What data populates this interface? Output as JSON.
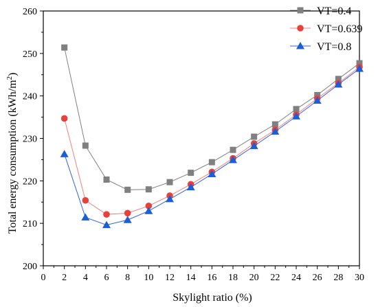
{
  "chart_data": {
    "type": "line",
    "xlabel": "Skylight ratio (%)",
    "ylabel": "Total energy consumption (kWh/m",
    "ylabel_sup": "2",
    "ylabel_close": ")",
    "xlim": [
      0,
      30
    ],
    "ylim": [
      200,
      260
    ],
    "x_ticks": [
      0,
      2,
      4,
      6,
      8,
      10,
      12,
      14,
      16,
      18,
      20,
      22,
      24,
      26,
      28,
      30
    ],
    "y_ticks": [
      200,
      210,
      220,
      230,
      240,
      250,
      260
    ],
    "x": [
      2,
      4,
      6,
      8,
      10,
      12,
      14,
      16,
      18,
      20,
      22,
      24,
      26,
      28,
      30
    ],
    "legend_position": "top-right",
    "grid": false,
    "series": [
      {
        "name": "VT=0.4",
        "marker": "square",
        "marker_color": "#808080",
        "line_color": "#808080",
        "values": [
          251.4,
          228.3,
          220.3,
          217.9,
          218.0,
          219.7,
          221.9,
          224.4,
          227.3,
          230.4,
          233.3,
          236.9,
          240.2,
          244.0,
          247.7
        ]
      },
      {
        "name": "VT=0.639",
        "marker": "circle",
        "marker_color": "#e8403a",
        "line_color": "#f08080",
        "values": [
          234.7,
          215.4,
          212.1,
          212.4,
          214.1,
          216.5,
          219.2,
          222.1,
          225.3,
          228.8,
          232.0,
          235.6,
          239.4,
          243.0,
          246.8
        ]
      },
      {
        "name": "VT=0.8",
        "marker": "triangle",
        "marker_color": "#1a5fd6",
        "line_color": "#3060e0",
        "values": [
          226.3,
          211.4,
          209.6,
          210.8,
          212.9,
          215.7,
          218.5,
          221.6,
          224.9,
          228.2,
          231.6,
          235.2,
          238.9,
          242.7,
          246.4
        ]
      }
    ]
  }
}
